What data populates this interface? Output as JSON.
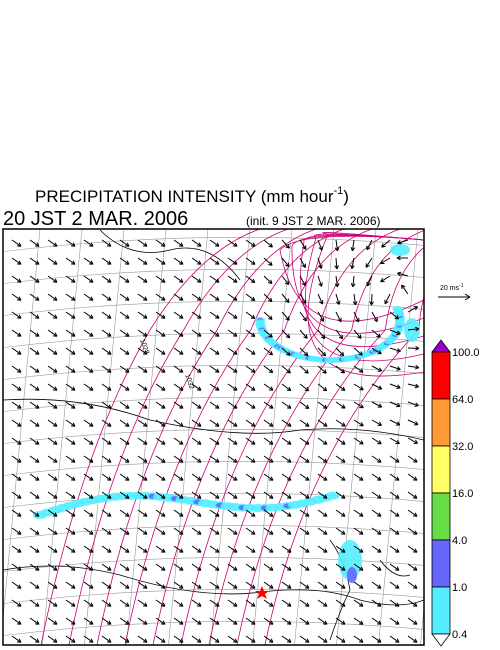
{
  "title": {
    "main": "PRECIPITATION INTENSITY (mm hour",
    "exponent": "-1",
    "close": ")"
  },
  "valid_time": "20 JST 2 MAR. 2006",
  "init_time": "(init. 9 JST 2 MAR. 2006)",
  "vector_scale": {
    "label": "20 ms",
    "exponent": "-1"
  },
  "isobar_labels": [
    "1028",
    "1032"
  ],
  "colorbar": {
    "labels": [
      "100.0",
      "64.0",
      "32.0",
      "16.0",
      "4.0",
      "1.0",
      "0.4"
    ],
    "colors": [
      "#9900cc",
      "#ff0000",
      "#ff9933",
      "#ffff66",
      "#66dd44",
      "#6666ff",
      "#55eeff",
      "#ffffff"
    ]
  }
}
